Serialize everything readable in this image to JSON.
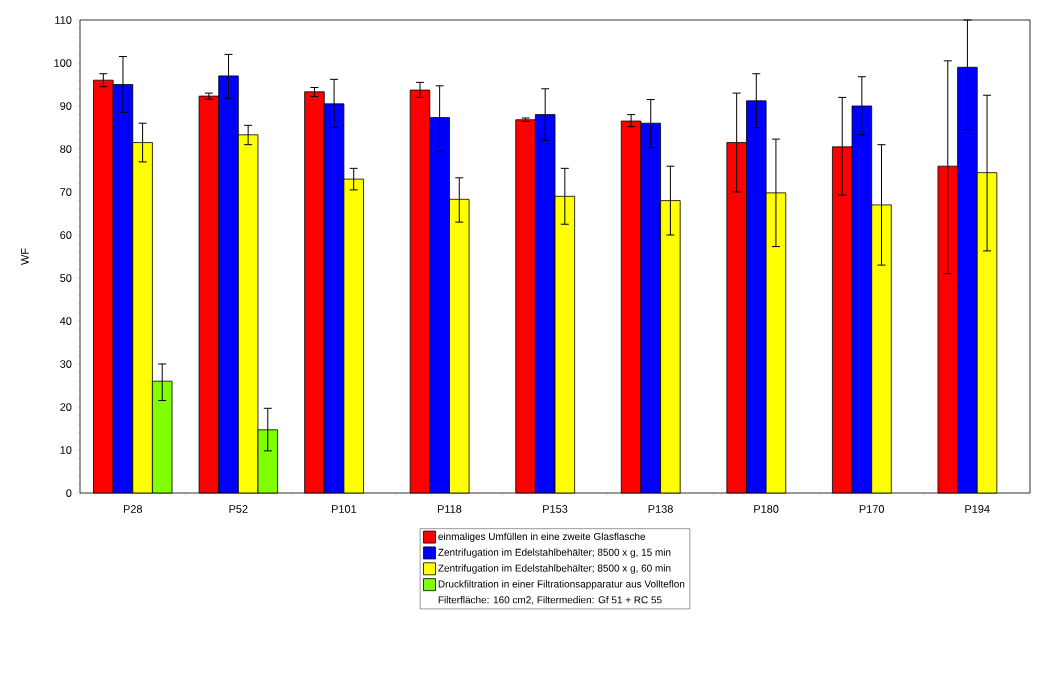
{
  "chart_data": {
    "type": "bar",
    "ylabel": "WF",
    "categories": [
      "P28",
      "P52",
      "P101",
      "P118",
      "P153",
      "P138",
      "P180",
      "P170",
      "P194"
    ],
    "series": [
      {
        "name": "einmaliges Umfüllen in eine zweite Glasflasche",
        "color": "#ff0000",
        "values": [
          96,
          92.3,
          93.3,
          93.7,
          86.8,
          86.5,
          81.5,
          80.5,
          76
        ],
        "errors": [
          [
            94.5,
            97.5
          ],
          [
            91.6,
            93
          ],
          [
            92.2,
            94.3
          ],
          [
            92,
            95.5
          ],
          [
            86.4,
            87.2
          ],
          [
            85.2,
            88
          ],
          [
            70,
            93
          ],
          [
            69.3,
            92
          ],
          [
            51,
            100.5
          ]
        ]
      },
      {
        "name": "Zentrifugation im Edelstahlbehälter; 8500 x g, 15 min",
        "color": "#0000ff",
        "values": [
          95,
          97,
          90.5,
          87.3,
          88,
          86,
          91.2,
          90,
          99
        ],
        "errors": [
          [
            88.5,
            101.5
          ],
          [
            91.8,
            102
          ],
          [
            85,
            96.2
          ],
          [
            79.5,
            94.7
          ],
          [
            82,
            94
          ],
          [
            80.3,
            91.5
          ],
          [
            85,
            97.5
          ],
          [
            83.3,
            96.8
          ],
          [
            84.5,
            110
          ]
        ]
      },
      {
        "name": "Zentrifugation im Edelstahlbehälter; 8500 x g, 60 min",
        "color": "#ffff00",
        "values": [
          81.5,
          83.3,
          73,
          68.3,
          69,
          68,
          69.8,
          67,
          74.5
        ],
        "errors": [
          [
            77,
            86
          ],
          [
            81,
            85.5
          ],
          [
            70.5,
            75.5
          ],
          [
            63,
            73.3
          ],
          [
            62.5,
            75.5
          ],
          [
            60,
            76
          ],
          [
            57.3,
            82.3
          ],
          [
            53,
            81
          ],
          [
            56.3,
            92.5
          ]
        ]
      },
      {
        "name": "Druckfiltration in einer Filtrationsapparatur aus Vollteflon",
        "color": "#80ff00",
        "values": [
          26,
          14.7,
          null,
          null,
          null,
          null,
          null,
          null,
          null
        ],
        "errors": [
          [
            21.5,
            30
          ],
          [
            9.8,
            19.7
          ],
          null,
          null,
          null,
          null,
          null,
          null,
          null
        ]
      }
    ],
    "annotations": [
      "Filterfläche: 160 cm2, Filtermedien: Gf 51 + RC 55"
    ],
    "ylim": [
      0,
      110
    ],
    "yticks": [
      0,
      10,
      20,
      30,
      40,
      50,
      60,
      70,
      80,
      90,
      100,
      110
    ],
    "legend": "bottom"
  }
}
